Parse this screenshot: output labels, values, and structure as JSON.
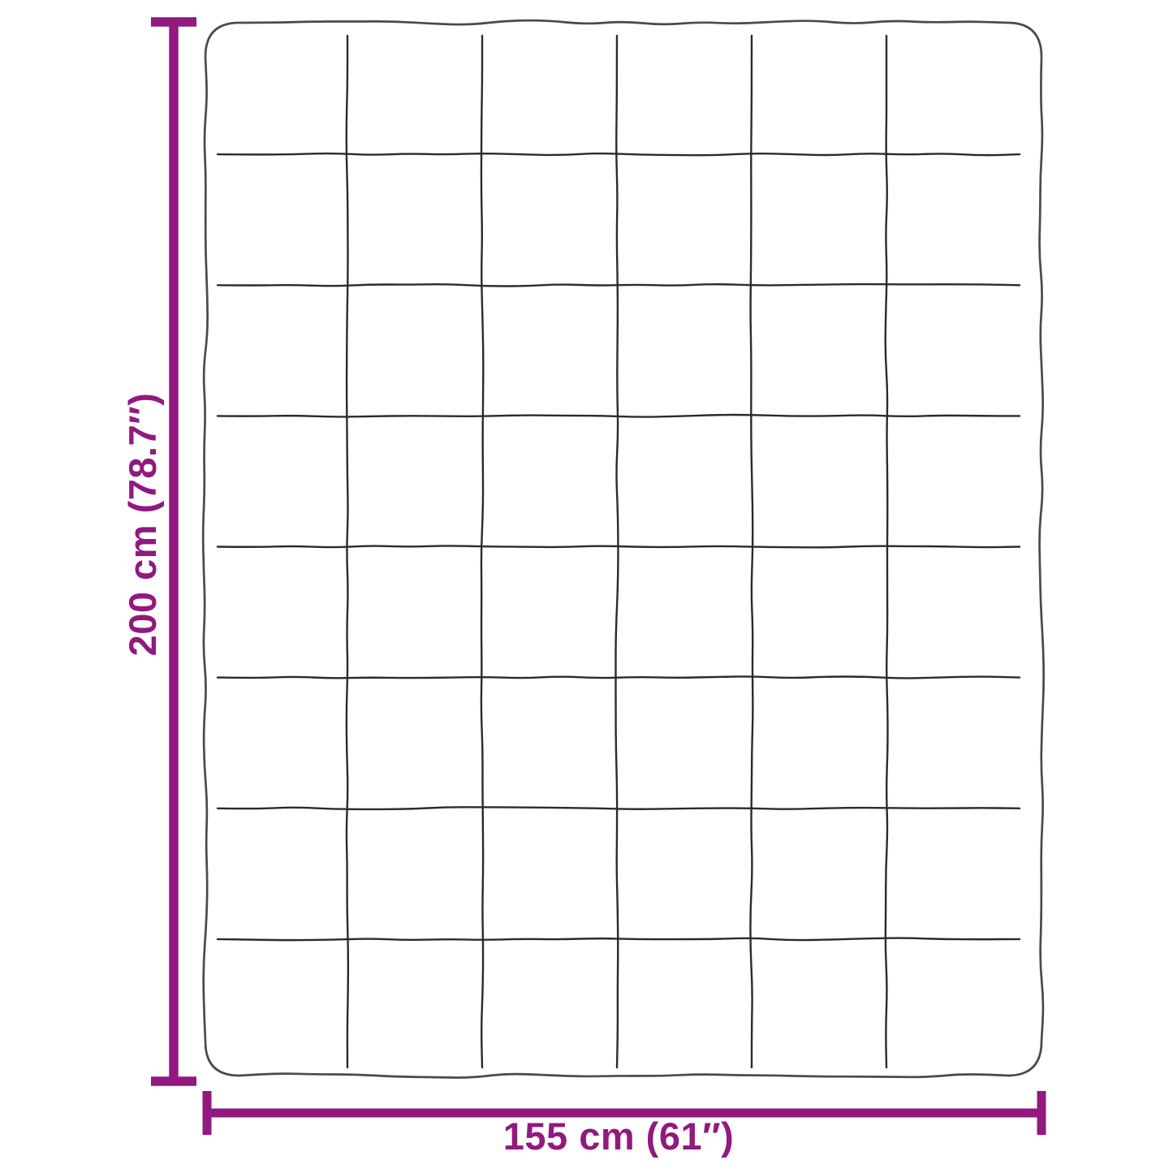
{
  "diagram": {
    "type": "product-dimension-diagram",
    "subject": "quilted-blanket-top-view",
    "height_label": "200 cm (78.7″)",
    "width_label": "155 cm (61″)",
    "quilt_grid": {
      "columns": 6,
      "rows": 8
    },
    "colors": {
      "dimension_accent": "#911980",
      "blanket_outline": "#4A4A4A",
      "stitch_line": "#2B2B2B",
      "background": "#FFFFFF"
    }
  }
}
